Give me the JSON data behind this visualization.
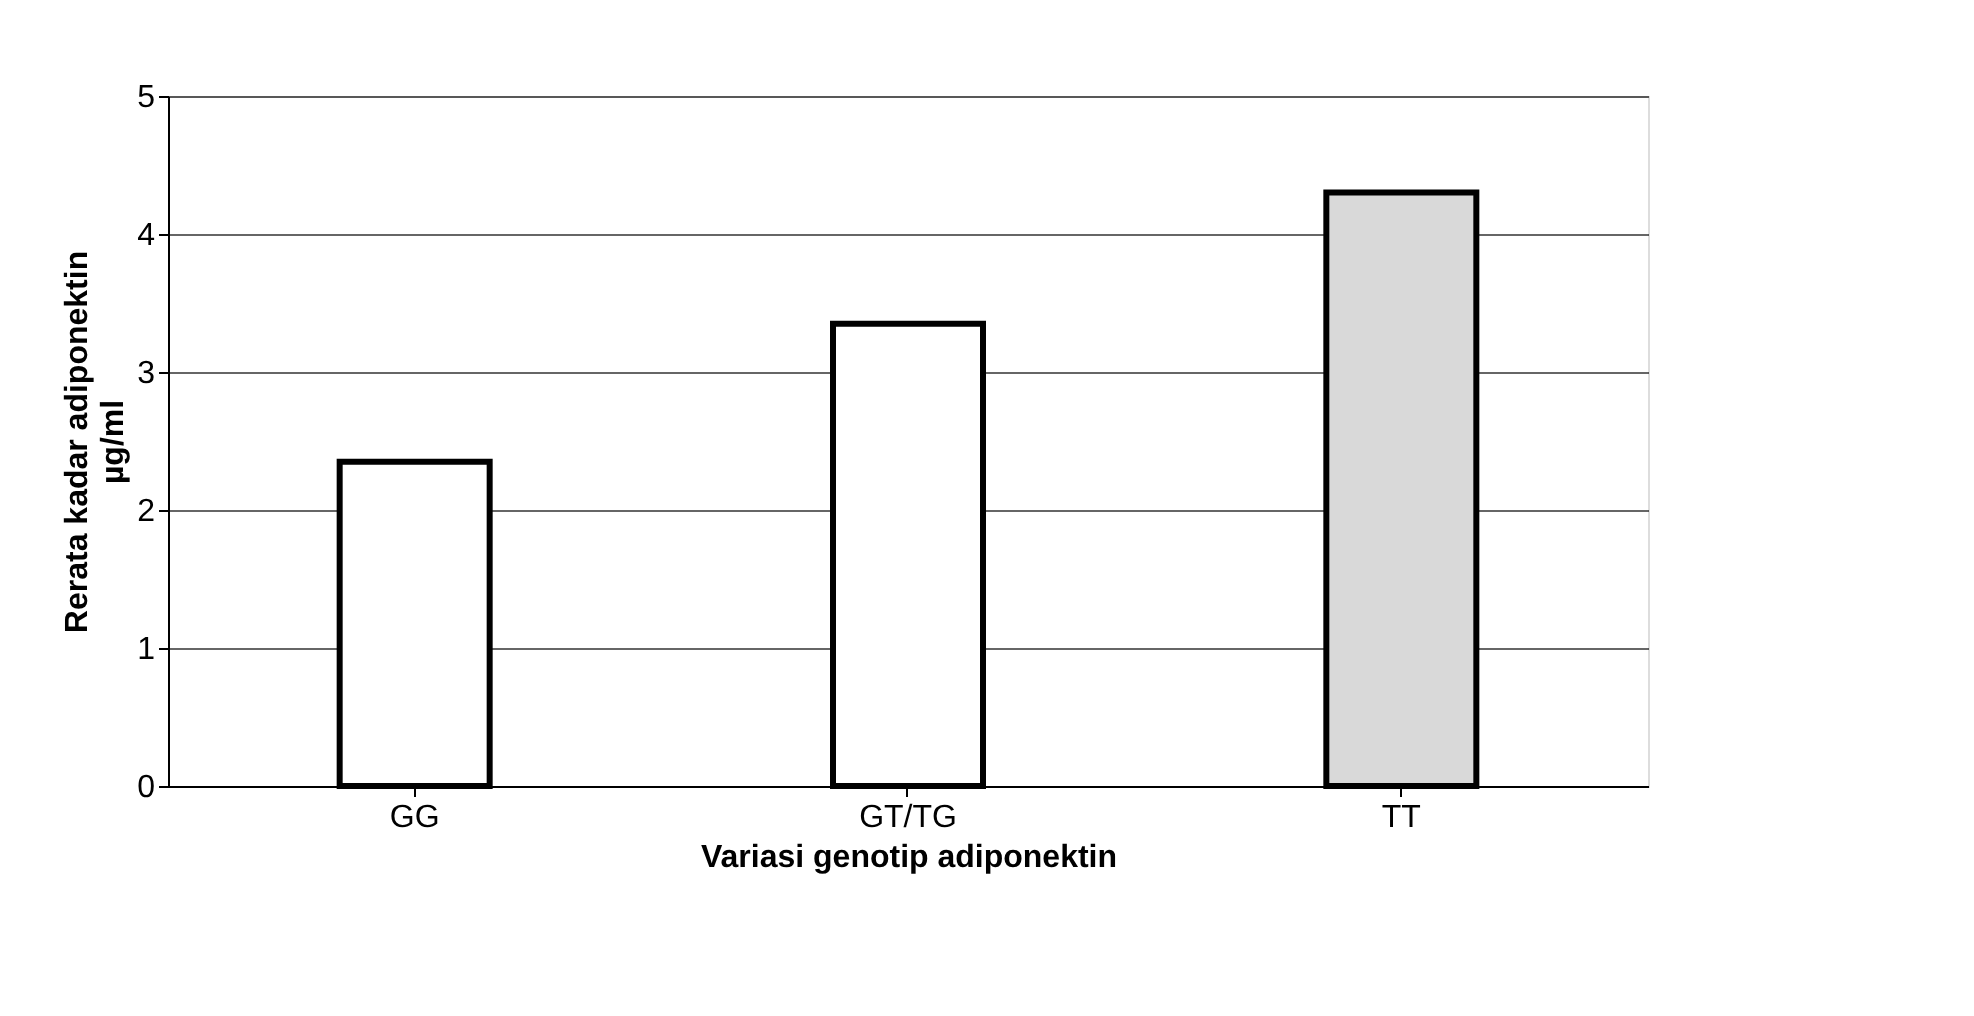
{
  "chart_data": {
    "type": "bar",
    "categories": [
      "GG",
      "GT/TG",
      "TT"
    ],
    "values": [
      2.35,
      3.35,
      4.3
    ],
    "colors": [
      "#ffffff",
      "#ffffff",
      "#d9d9d9"
    ],
    "xlabel": "Variasi genotip   adiponektin",
    "ylabel": "Rerata kadar adiponektin µg/ml",
    "ylim": [
      0,
      5
    ],
    "yticks": [
      0,
      1,
      2,
      3,
      4,
      5
    ],
    "grid": "y"
  }
}
